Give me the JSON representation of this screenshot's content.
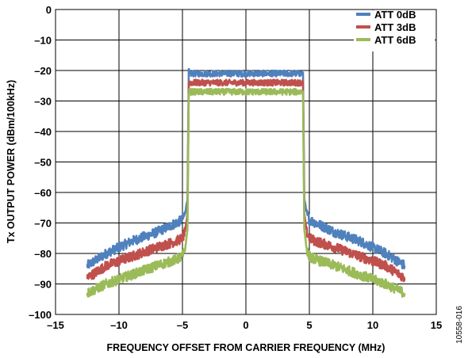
{
  "chart_data": {
    "type": "line",
    "xlabel": "FREQUENCY OFFSET FROM CARRIER FREQUENCY (MHz)",
    "ylabel": "Tx OUTPUT POWER (dBm/100kHz)",
    "xlim": [
      -15,
      15
    ],
    "ylim": [
      -100,
      0
    ],
    "x_ticks": [
      -15,
      -10,
      -5,
      0,
      5,
      10,
      15
    ],
    "x_tick_labels": [
      "–15",
      "–10",
      "–5",
      "0",
      "5",
      "10",
      "15"
    ],
    "y_ticks": [
      0,
      -10,
      -20,
      -30,
      -40,
      -50,
      -60,
      -70,
      -80,
      -90,
      -100
    ],
    "y_tick_labels": [
      "0",
      "–10",
      "–20",
      "–30",
      "–40",
      "–50",
      "–60",
      "–70",
      "–80",
      "–90",
      "–100"
    ],
    "grid": true,
    "legend_position": "top-right",
    "figure_id": "10558-016",
    "series": [
      {
        "name": "ATT 0dB",
        "color": "#4F81BD",
        "x": [
          -12.5,
          -11,
          -9,
          -7,
          -5.5,
          -5,
          -4.8,
          -4.6,
          -4.5,
          0,
          4.5,
          4.6,
          4.8,
          5,
          5.5,
          7,
          9,
          11,
          12.5
        ],
        "y": [
          -84,
          -80,
          -76,
          -73,
          -70,
          -69,
          -67,
          -62,
          -21,
          -21,
          -21,
          -62,
          -67,
          -69,
          -70,
          -73,
          -76,
          -80,
          -84
        ]
      },
      {
        "name": "ATT 3dB",
        "color": "#C0504D",
        "x": [
          -12.5,
          -11,
          -9,
          -7,
          -5.5,
          -5,
          -4.8,
          -4.6,
          -4.5,
          0,
          4.5,
          4.6,
          4.8,
          5,
          5.5,
          7,
          9,
          11,
          12.5
        ],
        "y": [
          -88,
          -84,
          -81,
          -78,
          -76,
          -75,
          -73,
          -67,
          -24,
          -24,
          -24,
          -67,
          -73,
          -75,
          -76,
          -78,
          -81,
          -84,
          -88
        ]
      },
      {
        "name": "ATT 6dB",
        "color": "#9BBB59",
        "x": [
          -12.5,
          -11,
          -9,
          -7,
          -5.5,
          -5,
          -4.8,
          -4.6,
          -4.5,
          0,
          4.5,
          4.6,
          4.8,
          5,
          5.5,
          7,
          9,
          11,
          12.5
        ],
        "y": [
          -93,
          -90,
          -87,
          -84,
          -82,
          -81,
          -79,
          -72,
          -27,
          -27,
          -27,
          -72,
          -79,
          -81,
          -82,
          -84,
          -87,
          -90,
          -93
        ]
      }
    ]
  }
}
